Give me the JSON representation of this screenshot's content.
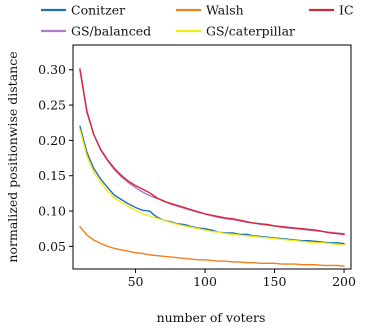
{
  "chart_data": {
    "type": "line",
    "title": "",
    "xlabel": "number of voters",
    "ylabel": "normalized positionwise distance",
    "xlim": [
      5,
      205
    ],
    "ylim": [
      0.018,
      0.335
    ],
    "xticks": [
      50,
      100,
      150,
      200
    ],
    "yticks": [
      0.05,
      0.1,
      0.15,
      0.2,
      0.25,
      0.3
    ],
    "ytick_labels": [
      "0.05",
      "0.10",
      "0.15",
      "0.20",
      "0.25",
      "0.30"
    ],
    "grid": false,
    "legend_position": "above plot, 3 columns",
    "x": [
      10,
      15,
      20,
      25,
      30,
      35,
      40,
      45,
      50,
      55,
      60,
      65,
      70,
      75,
      80,
      85,
      90,
      95,
      100,
      105,
      110,
      115,
      120,
      125,
      130,
      135,
      140,
      145,
      150,
      155,
      160,
      165,
      170,
      175,
      180,
      185,
      190,
      195,
      200
    ],
    "series": [
      {
        "name": "Conitzer",
        "color": "#1f6fb5",
        "values": [
          0.22,
          0.183,
          0.16,
          0.145,
          0.133,
          0.122,
          0.116,
          0.11,
          0.105,
          0.101,
          0.1,
          0.092,
          0.087,
          0.085,
          0.082,
          0.081,
          0.078,
          0.076,
          0.075,
          0.073,
          0.07,
          0.069,
          0.069,
          0.067,
          0.067,
          0.065,
          0.064,
          0.063,
          0.062,
          0.061,
          0.06,
          0.059,
          0.058,
          0.058,
          0.057,
          0.056,
          0.055,
          0.055,
          0.054
        ]
      },
      {
        "name": "Walsh",
        "color": "#f07f1a",
        "values": [
          0.078,
          0.066,
          0.059,
          0.054,
          0.05,
          0.047,
          0.045,
          0.043,
          0.041,
          0.04,
          0.038,
          0.037,
          0.036,
          0.035,
          0.034,
          0.033,
          0.032,
          0.031,
          0.031,
          0.03,
          0.029,
          0.029,
          0.028,
          0.028,
          0.027,
          0.027,
          0.026,
          0.026,
          0.026,
          0.025,
          0.025,
          0.025,
          0.024,
          0.024,
          0.024,
          0.023,
          0.023,
          0.023,
          0.022
        ]
      },
      {
        "name": "IC",
        "color": "#d62738",
        "values": [
          0.3,
          0.24,
          0.208,
          0.187,
          0.172,
          0.16,
          0.15,
          0.142,
          0.136,
          0.131,
          0.126,
          0.119,
          0.114,
          0.111,
          0.108,
          0.105,
          0.102,
          0.099,
          0.096,
          0.094,
          0.092,
          0.09,
          0.089,
          0.087,
          0.085,
          0.083,
          0.082,
          0.081,
          0.079,
          0.078,
          0.077,
          0.076,
          0.075,
          0.074,
          0.073,
          0.071,
          0.069,
          0.068,
          0.067
        ]
      },
      {
        "name": "GS/balanced",
        "color": "#b07cc6",
        "values": [
          0.302,
          0.242,
          0.208,
          0.186,
          0.171,
          0.158,
          0.148,
          0.14,
          0.133,
          0.127,
          0.122,
          0.118,
          0.115,
          0.11,
          0.107,
          0.104,
          0.101,
          0.098,
          0.096,
          0.093,
          0.091,
          0.089,
          0.088,
          0.086,
          0.084,
          0.083,
          0.081,
          0.08,
          0.079,
          0.077,
          0.076,
          0.075,
          0.074,
          0.073,
          0.072,
          0.071,
          0.07,
          0.069,
          0.068
        ]
      },
      {
        "name": "GS/caterpillar",
        "color": "#f3ec1c",
        "values": [
          0.215,
          0.178,
          0.155,
          0.14,
          0.128,
          0.118,
          0.112,
          0.106,
          0.101,
          0.096,
          0.093,
          0.09,
          0.087,
          0.084,
          0.081,
          0.079,
          0.077,
          0.075,
          0.073,
          0.071,
          0.07,
          0.068,
          0.067,
          0.066,
          0.065,
          0.064,
          0.063,
          0.062,
          0.061,
          0.06,
          0.059,
          0.058,
          0.057,
          0.056,
          0.055,
          0.055,
          0.054,
          0.053,
          0.052
        ]
      }
    ]
  }
}
